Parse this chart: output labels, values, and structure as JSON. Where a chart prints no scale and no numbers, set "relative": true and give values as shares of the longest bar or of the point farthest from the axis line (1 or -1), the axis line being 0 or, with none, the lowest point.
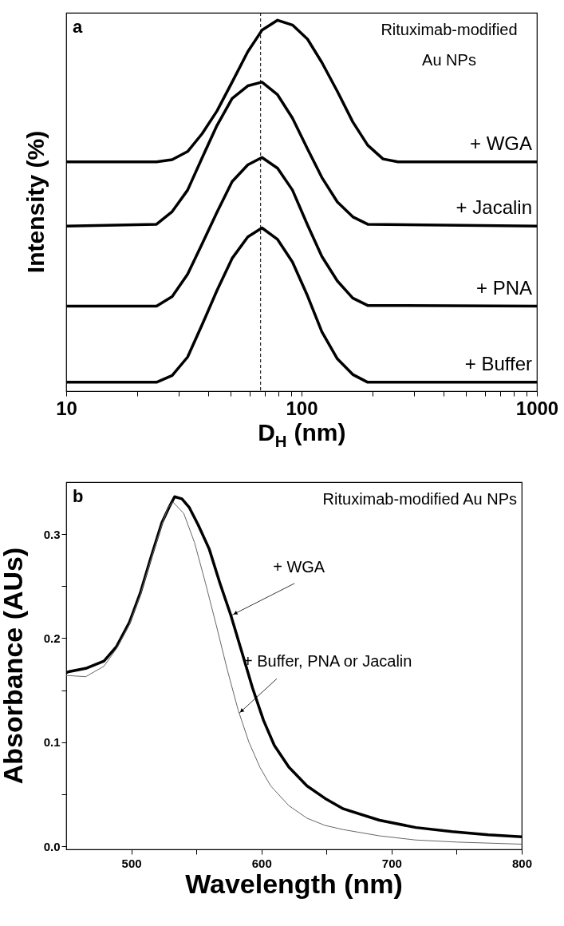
{
  "chart_data": [
    {
      "type": "line",
      "relative": true,
      "log": "x",
      "xlim": [
        10,
        1000
      ],
      "xticks": [
        10,
        {
          "value": 20,
          "label": null
        },
        {
          "value": 30,
          "label": null
        },
        {
          "value": 40,
          "label": null
        },
        {
          "value": 50,
          "label": null
        },
        {
          "value": 60,
          "label": null
        },
        {
          "value": 70,
          "label": null
        },
        {
          "value": 80,
          "label": null
        },
        {
          "value": 90,
          "label": null
        },
        100,
        {
          "value": 200,
          "label": null
        },
        {
          "value": 300,
          "label": null
        },
        {
          "value": 400,
          "label": null
        },
        {
          "value": 500,
          "label": null
        },
        {
          "value": 600,
          "label": null
        },
        {
          "value": 700,
          "label": null
        },
        {
          "value": 800,
          "label": null
        },
        {
          "value": 900,
          "label": null
        },
        1000
      ],
      "xlabel": "D$_{H}$ (nm)",
      "ylabel": "Intensity (%)",
      "series": [
        {
          "name": "+ WGA",
          "color": "#000000",
          "x": [
            10,
            24.2,
            28.2,
            32.8,
            37.8,
            43.7,
            50.7,
            59.1,
            67.9,
            79.1,
            91.5,
            106,
            122,
            142,
            165,
            191,
            222,
            257,
            1000
          ],
          "values": [
            0.618,
            0.618,
            0.624,
            0.646,
            0.694,
            0.755,
            0.833,
            0.915,
            0.973,
            1.0,
            0.987,
            0.949,
            0.886,
            0.808,
            0.726,
            0.663,
            0.626,
            0.618,
            0.618
          ]
        },
        {
          "name": "+ Jacalin",
          "color": "#000000",
          "x": [
            10,
            24.2,
            28.2,
            32.8,
            37.8,
            43.7,
            50.7,
            59.1,
            67.9,
            79.1,
            91.5,
            106,
            122,
            142,
            165,
            191,
            1000
          ],
          "values": [
            0.445,
            0.45,
            0.484,
            0.542,
            0.629,
            0.716,
            0.789,
            0.823,
            0.833,
            0.799,
            0.736,
            0.653,
            0.576,
            0.51,
            0.47,
            0.45,
            0.445
          ]
        },
        {
          "name": "+ PNA",
          "color": "#000000",
          "x": [
            10,
            24.2,
            28.2,
            32.8,
            37.8,
            43.7,
            50.7,
            59.1,
            67.9,
            79.1,
            91.5,
            106,
            122,
            142,
            165,
            191,
            1000
          ],
          "values": [
            0.229,
            0.229,
            0.255,
            0.315,
            0.397,
            0.482,
            0.565,
            0.61,
            0.63,
            0.601,
            0.542,
            0.448,
            0.363,
            0.297,
            0.251,
            0.231,
            0.229
          ]
        },
        {
          "name": "+ Buffer",
          "color": "#000000",
          "x": [
            10,
            24.2,
            28.2,
            32.8,
            37.8,
            43.7,
            50.7,
            59.1,
            67.9,
            79.1,
            91.5,
            106,
            122,
            142,
            165,
            191,
            1000
          ],
          "values": [
            0.024,
            0.024,
            0.042,
            0.092,
            0.179,
            0.271,
            0.358,
            0.416,
            0.44,
            0.409,
            0.348,
            0.257,
            0.16,
            0.087,
            0.045,
            0.024,
            0.024
          ]
        }
      ],
      "ref_lines": [
        {
          "axis": "x",
          "value": 67,
          "line_style": "dashed",
          "color": "#000000"
        }
      ],
      "annotations": [
        "a",
        "Rituximab-modified\nAu NPs"
      ]
    },
    {
      "type": "line",
      "xlim": [
        450,
        800
      ],
      "ylim": [
        -0.003,
        0.35
      ],
      "xticks": [
        500,
        {
          "value": 550,
          "label": null
        },
        600,
        {
          "value": 650,
          "label": null
        },
        700,
        {
          "value": 750,
          "label": null
        },
        800
      ],
      "yticks": [
        {
          "value": 0,
          "label": "0.0"
        },
        {
          "value": 0.05,
          "label": null
        },
        0.1,
        {
          "value": 0.15,
          "label": null
        },
        0.2,
        {
          "value": 0.25,
          "label": null
        },
        0.3
      ],
      "xlabel": "Wavelength (nm)",
      "ylabel": "Absorbance (AUs)",
      "series": [
        {
          "color": "#000000",
          "x": [
            450,
            452.5,
            465,
            479,
            488.7,
            498.5,
            506.8,
            515.2,
            523.5,
            529.1,
            533.3,
            538.9,
            544.4,
            551.4,
            559.8,
            568.1,
            576.5,
            584.9,
            593.2,
            601.6,
            609.9,
            621.1,
            635,
            648.9,
            662.9,
            690.7,
            718.6,
            746.5,
            774.3,
            800
          ],
          "values": [
            0.167,
            0.168,
            0.171,
            0.178,
            0.192,
            0.215,
            0.243,
            0.278,
            0.311,
            0.326,
            0.336,
            0.334,
            0.326,
            0.309,
            0.286,
            0.253,
            0.222,
            0.187,
            0.152,
            0.121,
            0.097,
            0.076,
            0.058,
            0.046,
            0.036,
            0.025,
            0.018,
            0.014,
            0.011,
            0.009
          ]
        },
        {
          "color": "#666666",
          "x": [
            450,
            452.5,
            465,
            479,
            488.7,
            498.5,
            506.8,
            515.2,
            523.5,
            528,
            531.9,
            540.3,
            548.6,
            557,
            565.4,
            573.7,
            582.1,
            590.4,
            598.8,
            607.1,
            621.1,
            635,
            648.9,
            662.9,
            690.7,
            718.6,
            750,
            800
          ],
          "values": [
            0.164,
            0.164,
            0.163,
            0.173,
            0.19,
            0.213,
            0.241,
            0.276,
            0.309,
            0.325,
            0.331,
            0.32,
            0.292,
            0.253,
            0.212,
            0.17,
            0.131,
            0.1,
            0.076,
            0.058,
            0.039,
            0.027,
            0.02,
            0.016,
            0.01,
            0.006,
            0.004,
            0.002
          ]
        }
      ],
      "annotations": [
        "b",
        "Rituximab-modified Au NPs",
        {
          "text": "+ WGA",
          "x": 577,
          "y": 0.222
        },
        {
          "text": "+ Buffer, PNA or Jacalin",
          "x": 583,
          "y": 0.128
        }
      ]
    }
  ]
}
